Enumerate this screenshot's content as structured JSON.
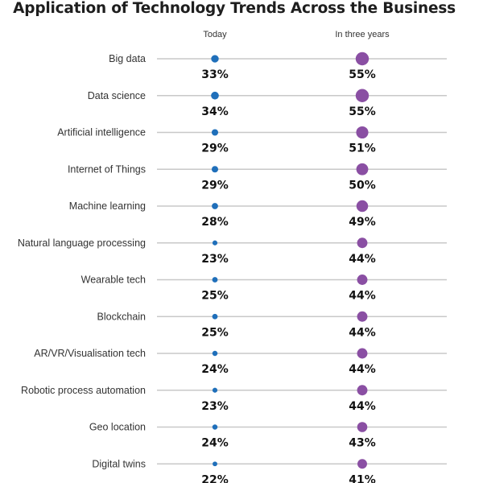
{
  "chart_data": {
    "type": "scatter",
    "title": "Application of Technology Trends Across the Business",
    "xlabel": "",
    "ylabel": "",
    "series": [
      {
        "name": "Today",
        "color": "#1f6fba",
        "values": [
          33,
          34,
          29,
          29,
          28,
          23,
          25,
          25,
          24,
          23,
          24,
          22
        ]
      },
      {
        "name": "In three years",
        "color": "#8a4fa3",
        "values": [
          55,
          55,
          51,
          50,
          49,
          44,
          44,
          44,
          44,
          44,
          43,
          41
        ]
      }
    ],
    "categories": [
      "Big data",
      "Data science",
      "Artificial intelligence",
      "Internet of Things",
      "Machine learning",
      "Natural language processing",
      "Wearable tech",
      "Blockchain",
      "AR/VR/Visualisation tech",
      "Robotic process automation",
      "Geo location",
      "Digital twins"
    ],
    "value_suffix": "%",
    "line_color": "#c8c8c8",
    "grid": false,
    "legend": "top (column headers)"
  }
}
